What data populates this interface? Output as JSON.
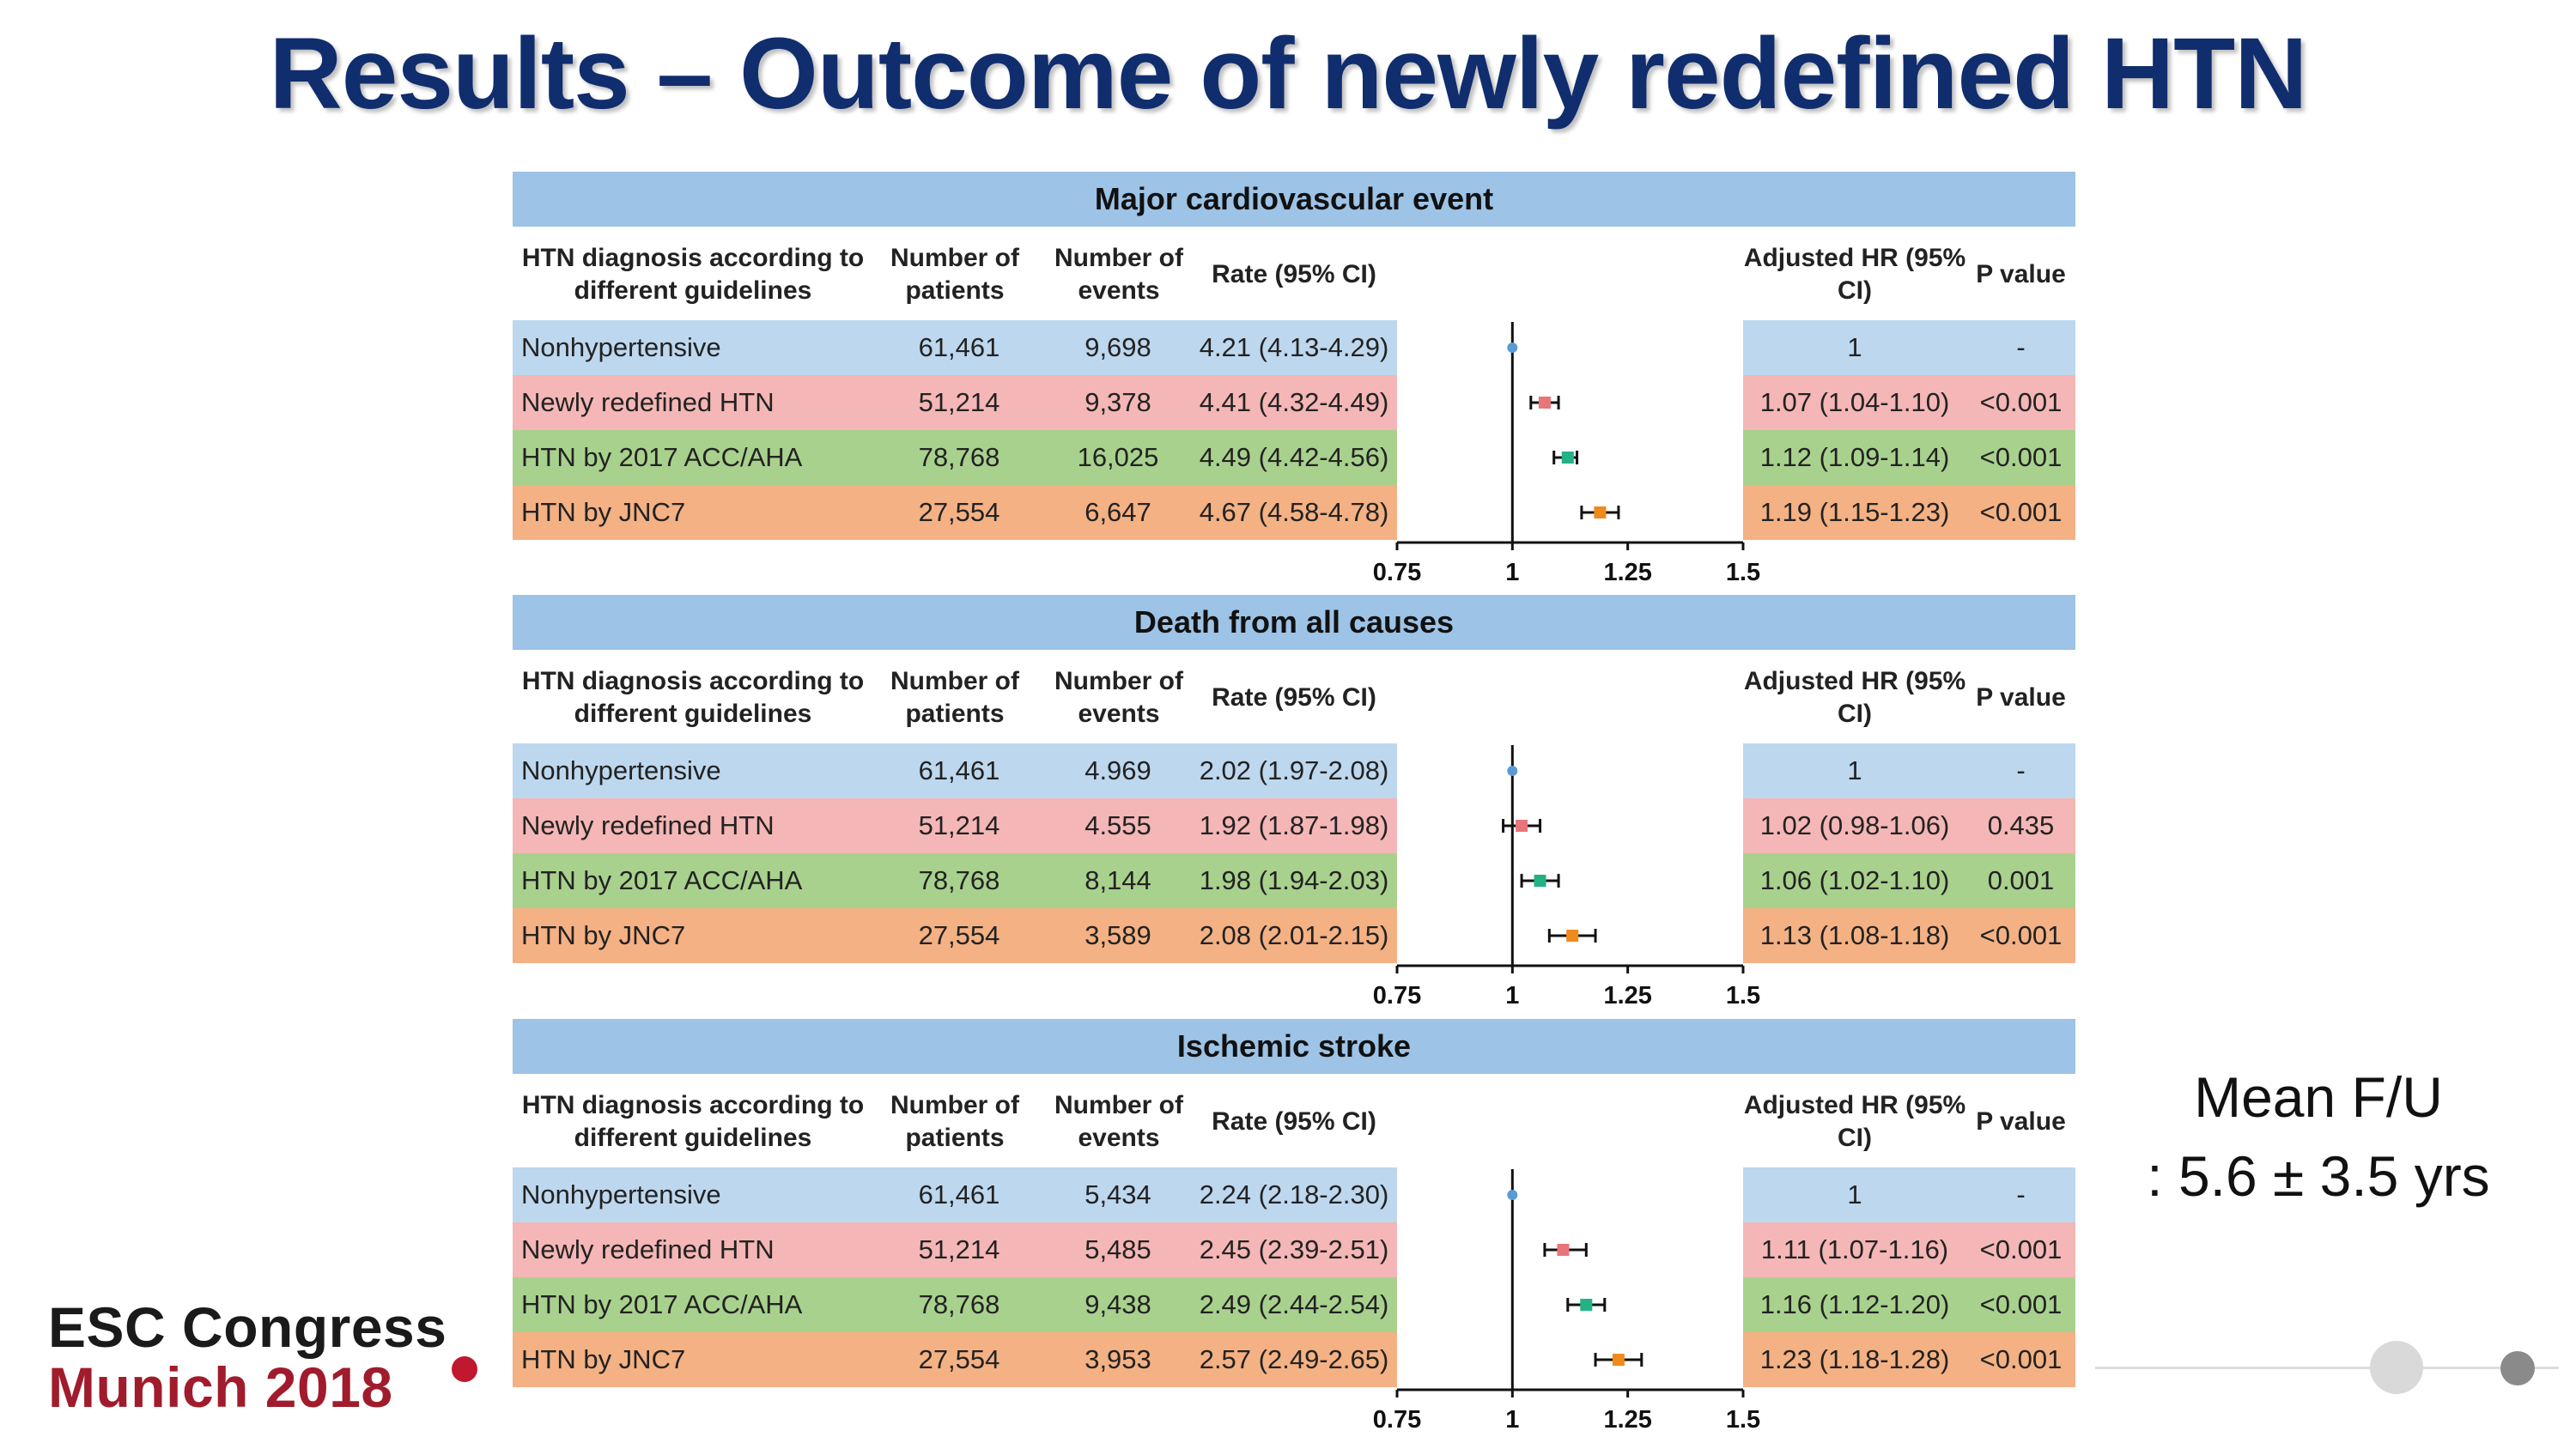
{
  "title": "Results – Outcome of newly redefined HTN",
  "footnote": {
    "line1": "Mean F/U",
    "line2": ": 5.6 ± 3.5 yrs"
  },
  "logo": {
    "line1": "ESC Congress",
    "line2": "Munich 2018"
  },
  "colors": {
    "header_bg": "#9dc3e6",
    "row_bg": [
      "#bdd7ee",
      "#f4b6b6",
      "#a9d18e",
      "#f4b183"
    ],
    "marker": [
      "#5b9bd5",
      "#e8757a",
      "#22b286",
      "#f08a1c"
    ]
  },
  "columns": {
    "diagnosis": "HTN diagnosis according to different guidelines",
    "patients": "Number of patients",
    "events": "Number of events",
    "rate": "Rate (95% CI)",
    "hr": "Adjusted HR (95% CI)",
    "p": "P value"
  },
  "chart_data": [
    {
      "type": "forest",
      "title": "Major cardiovascular event",
      "xlim": [
        0.75,
        1.5
      ],
      "x_ticks": [
        "0.75",
        "1",
        "1.25",
        "1.5"
      ],
      "reference_line": 1,
      "rows": [
        {
          "group": "Nonhypertensive",
          "patients": "61,461",
          "events": "9,698",
          "rate": "4.21 (4.13-4.29)",
          "hr_text": "1",
          "p": "-",
          "hr": 1,
          "lo": 1,
          "hi": 1
        },
        {
          "group": "Newly redefined HTN",
          "patients": "51,214",
          "events": "9,378",
          "rate": "4.41 (4.32-4.49)",
          "hr_text": "1.07 (1.04-1.10)",
          "p": "<0.001",
          "hr": 1.07,
          "lo": 1.04,
          "hi": 1.1
        },
        {
          "group": "HTN by 2017 ACC/AHA",
          "patients": "78,768",
          "events": "16,025",
          "rate": "4.49 (4.42-4.56)",
          "hr_text": "1.12 (1.09-1.14)",
          "p": "<0.001",
          "hr": 1.12,
          "lo": 1.09,
          "hi": 1.14
        },
        {
          "group": "HTN by JNC7",
          "patients": "27,554",
          "events": "6,647",
          "rate": "4.67 (4.58-4.78)",
          "hr_text": "1.19 (1.15-1.23)",
          "p": "<0.001",
          "hr": 1.19,
          "lo": 1.15,
          "hi": 1.23
        }
      ]
    },
    {
      "type": "forest",
      "title": "Death from all causes",
      "xlim": [
        0.75,
        1.5
      ],
      "x_ticks": [
        "0.75",
        "1",
        "1.25",
        "1.5"
      ],
      "reference_line": 1,
      "rows": [
        {
          "group": "Nonhypertensive",
          "patients": "61,461",
          "events": "4.969",
          "rate": "2.02 (1.97-2.08)",
          "hr_text": "1",
          "p": "-",
          "hr": 1,
          "lo": 1,
          "hi": 1
        },
        {
          "group": "Newly redefined HTN",
          "patients": "51,214",
          "events": "4.555",
          "rate": "1.92 (1.87-1.98)",
          "hr_text": "1.02 (0.98-1.06)",
          "p": "0.435",
          "hr": 1.02,
          "lo": 0.98,
          "hi": 1.06
        },
        {
          "group": "HTN by 2017 ACC/AHA",
          "patients": "78,768",
          "events": "8,144",
          "rate": "1.98 (1.94-2.03)",
          "hr_text": "1.06 (1.02-1.10)",
          "p": "0.001",
          "hr": 1.06,
          "lo": 1.02,
          "hi": 1.1
        },
        {
          "group": "HTN by JNC7",
          "patients": "27,554",
          "events": "3,589",
          "rate": "2.08 (2.01-2.15)",
          "hr_text": "1.13 (1.08-1.18)",
          "p": "<0.001",
          "hr": 1.13,
          "lo": 1.08,
          "hi": 1.18
        }
      ]
    },
    {
      "type": "forest",
      "title": "Ischemic stroke",
      "xlim": [
        0.75,
        1.5
      ],
      "x_ticks": [
        "0.75",
        "1",
        "1.25",
        "1.5"
      ],
      "reference_line": 1,
      "rows": [
        {
          "group": "Nonhypertensive",
          "patients": "61,461",
          "events": "5,434",
          "rate": "2.24 (2.18-2.30)",
          "hr_text": "1",
          "p": "-",
          "hr": 1,
          "lo": 1,
          "hi": 1
        },
        {
          "group": "Newly redefined HTN",
          "patients": "51,214",
          "events": "5,485",
          "rate": "2.45 (2.39-2.51)",
          "hr_text": "1.11 (1.07-1.16)",
          "p": "<0.001",
          "hr": 1.11,
          "lo": 1.07,
          "hi": 1.16
        },
        {
          "group": "HTN by 2017 ACC/AHA",
          "patients": "78,768",
          "events": "9,438",
          "rate": "2.49 (2.44-2.54)",
          "hr_text": "1.16 (1.12-1.20)",
          "p": "<0.001",
          "hr": 1.16,
          "lo": 1.12,
          "hi": 1.2
        },
        {
          "group": "HTN by JNC7",
          "patients": "27,554",
          "events": "3,953",
          "rate": "2.57 (2.49-2.65)",
          "hr_text": "1.23 (1.18-1.28)",
          "p": "<0.001",
          "hr": 1.23,
          "lo": 1.18,
          "hi": 1.28
        }
      ]
    }
  ]
}
